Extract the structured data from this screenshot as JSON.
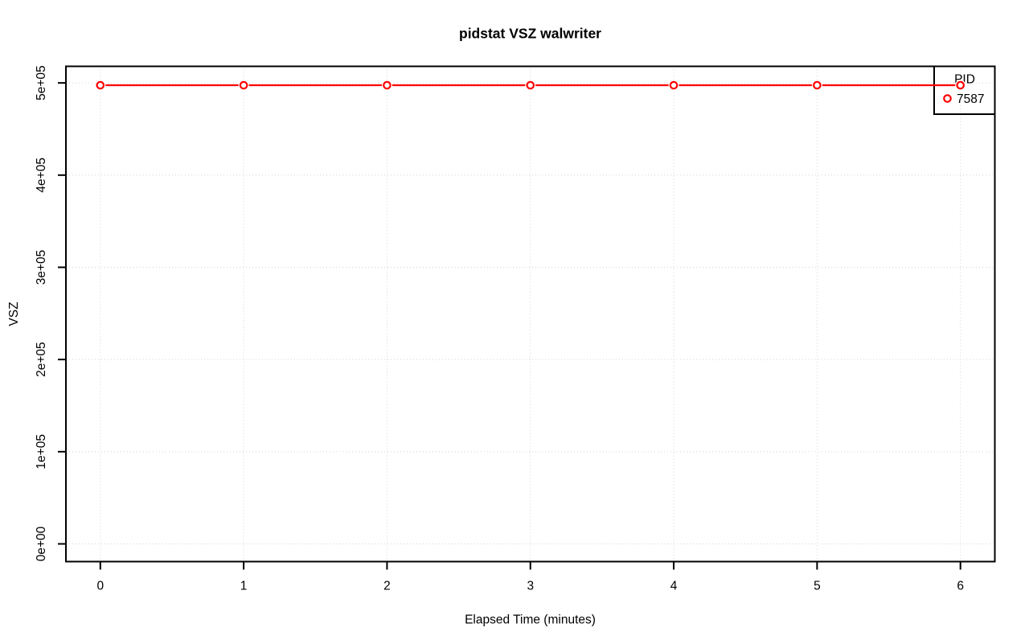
{
  "chart_data": {
    "type": "line",
    "title": "pidstat VSZ walwriter",
    "xlabel": "Elapsed Time (minutes)",
    "ylabel": "VSZ",
    "x": [
      0,
      1,
      2,
      3,
      4,
      5,
      6
    ],
    "series": [
      {
        "name": "7587",
        "values": [
          497500,
          497500,
          497500,
          497500,
          497500,
          497500,
          497500
        ],
        "color": "#FF0000",
        "marker": "open-circle"
      }
    ],
    "legend": {
      "title": "PID",
      "position": "topright",
      "entries": [
        "7587"
      ]
    },
    "x_ticks": [
      "0",
      "1",
      "2",
      "3",
      "4",
      "5",
      "6"
    ],
    "x_tick_values": [
      0,
      1,
      2,
      3,
      4,
      5,
      6
    ],
    "y_ticks": [
      "0e+00",
      "1e+05",
      "2e+05",
      "3e+05",
      "4e+05",
      "5e+05"
    ],
    "y_tick_values": [
      0,
      100000,
      200000,
      300000,
      400000,
      500000
    ],
    "xlim": [
      -0.24,
      6.24
    ],
    "ylim": [
      -19200,
      518000
    ],
    "grid": {
      "visible": true,
      "style": "dotted",
      "color": "#D3D3D3"
    },
    "colors": {
      "line": "#FF0000",
      "marker_fill": "#FFFFFF",
      "box": "#000000",
      "text": "#000000",
      "background": "#FFFFFF"
    }
  }
}
